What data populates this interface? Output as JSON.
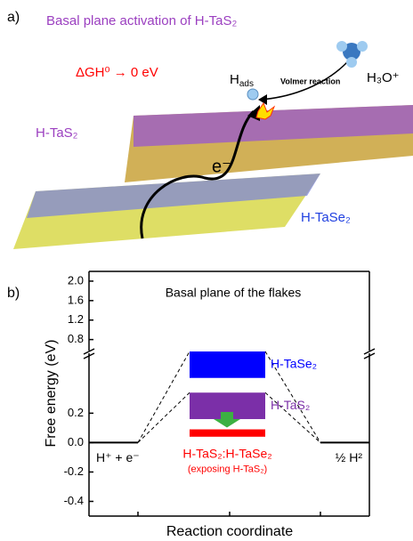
{
  "illustration": {
    "panel_label": "a)",
    "title": "Basal plane activation of H-TaS₂",
    "condition": "ΔGH⁰ → 0 eV",
    "reaction": "Volmer reaction",
    "adsorbate": {
      "main": "H",
      "sub": "ads"
    },
    "proton": "H₃O⁺",
    "electron": "e⁻",
    "top_layer": "H-TaS₂",
    "bottom_layer": "H-TaSe₂"
  },
  "chart_data": {
    "type": "step",
    "panel_label": "b)",
    "annotation": "Basal plane of the flakes",
    "ylabel": "Free energy (eV)",
    "xlabel": "Reaction coordinate",
    "ylim": [
      -0.5,
      0.62
    ],
    "yticks": [
      -0.4,
      -0.2,
      {
        "value": 0,
        "label": "0.0"
      },
      0.2
    ],
    "y2lim": [
      0.72,
      2.2
    ],
    "y2ticks": [
      0.8,
      1.2,
      1.6,
      {
        "value": 2,
        "label": "2.0"
      }
    ],
    "levels": [
      {
        "name": "H⁺ + e⁻",
        "value": 0
      },
      {
        "name": "½ H²",
        "value": 0
      }
    ],
    "states": [
      {
        "name": "H-TaSe₂",
        "color": "#0000ff",
        "range": [
          0.44,
          0.62
        ]
      },
      {
        "name": "H-TaS₂",
        "color": "#7b2fa8",
        "range": [
          0.16,
          0.34
        ]
      },
      {
        "name": "H-TaS₂:H-TaSe₂",
        "note": "(exposing H-TaS₂)",
        "color": "#ff0000",
        "range": [
          0.04,
          0.09
        ]
      }
    ]
  }
}
